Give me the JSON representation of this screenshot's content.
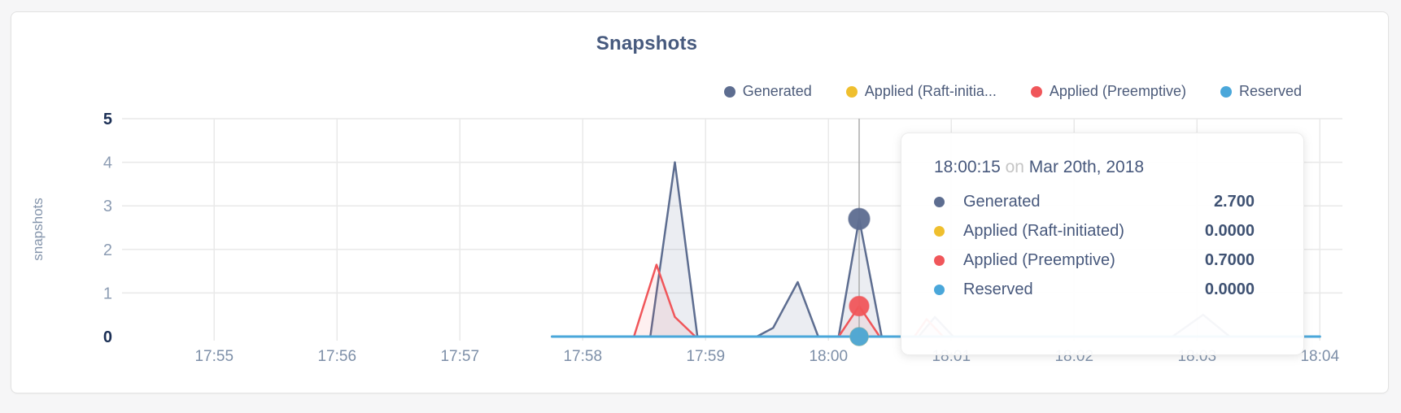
{
  "chart": {
    "title": "Snapshots",
    "ylabel": "snapshots"
  },
  "legend": {
    "items": [
      {
        "label": "Generated",
        "color": "#5d6d90"
      },
      {
        "label": "Applied (Raft-initia...",
        "color": "#efbf2e"
      },
      {
        "label": "Applied (Preemptive)",
        "color": "#f0565a"
      },
      {
        "label": "Reserved",
        "color": "#4aa7da"
      }
    ]
  },
  "tooltip": {
    "time": "18:00:15",
    "connector": "on",
    "date": "Mar 20th, 2018",
    "rows": [
      {
        "label": "Generated",
        "value": "2.700",
        "color": "#5d6d90"
      },
      {
        "label": "Applied (Raft-initiated)",
        "value": "0.0000",
        "color": "#efbf2e"
      },
      {
        "label": "Applied (Preemptive)",
        "value": "0.7000",
        "color": "#f0565a"
      },
      {
        "label": "Reserved",
        "value": "0.0000",
        "color": "#4aa7da"
      }
    ]
  },
  "chart_data": {
    "type": "area",
    "title": "Snapshots",
    "xlabel": "",
    "ylabel": "snapshots",
    "ylim": [
      0,
      5
    ],
    "y_ticks": [
      0,
      1,
      2,
      3,
      4,
      5
    ],
    "x_ticks": [
      "17:55",
      "17:56",
      "17:57",
      "17:58",
      "17:59",
      "18:00",
      "18:01",
      "18:02",
      "18:03",
      "18:04"
    ],
    "x_range": [
      "17:54:15",
      "18:04:11"
    ],
    "grid": true,
    "legend_position": "top-right",
    "hover": {
      "x": "18:00:15",
      "crosshair": true
    },
    "series": [
      {
        "name": "Generated",
        "color": "#5d6d90",
        "fill": "rgba(93,109,144,0.12)",
        "hover_value": 2.7,
        "points": [
          [
            "17:57:45",
            0
          ],
          [
            "17:58:33",
            0
          ],
          [
            "17:58:45",
            4.0
          ],
          [
            "17:58:56",
            0
          ],
          [
            "17:59:25",
            0
          ],
          [
            "17:59:33",
            0.2
          ],
          [
            "17:59:45",
            1.25
          ],
          [
            "17:59:55",
            0
          ],
          [
            "18:00:05",
            0
          ],
          [
            "18:00:15",
            2.7
          ],
          [
            "18:00:26",
            0
          ],
          [
            "18:00:44",
            0
          ],
          [
            "18:00:52",
            0.45
          ],
          [
            "18:01:01",
            0
          ],
          [
            "18:02:48",
            0
          ],
          [
            "18:03:03",
            0.5
          ],
          [
            "18:03:16",
            0
          ],
          [
            "18:04:00",
            0
          ]
        ]
      },
      {
        "name": "Applied (Raft-initiated)",
        "color": "#efbf2e",
        "fill": "none",
        "hover_value": 0,
        "points": [
          [
            "17:57:45",
            0
          ],
          [
            "18:04:00",
            0
          ]
        ]
      },
      {
        "name": "Applied (Preemptive)",
        "color": "#f0565a",
        "fill": "rgba(240,86,89,0.09)",
        "hover_value": 0.7,
        "points": [
          [
            "17:57:45",
            0
          ],
          [
            "17:58:25",
            0
          ],
          [
            "17:58:36",
            1.65
          ],
          [
            "17:58:45",
            0.45
          ],
          [
            "17:58:55",
            0
          ],
          [
            "18:00:05",
            0
          ],
          [
            "18:00:15",
            0.7
          ],
          [
            "18:00:25",
            0
          ],
          [
            "18:00:42",
            0
          ],
          [
            "18:00:48",
            0.4
          ],
          [
            "18:00:56",
            0
          ],
          [
            "18:04:00",
            0
          ]
        ]
      },
      {
        "name": "Reserved",
        "color": "#4aa7da",
        "fill": "none",
        "hover_value": 0,
        "points": [
          [
            "17:57:45",
            0
          ],
          [
            "18:04:00",
            0
          ]
        ]
      }
    ]
  }
}
